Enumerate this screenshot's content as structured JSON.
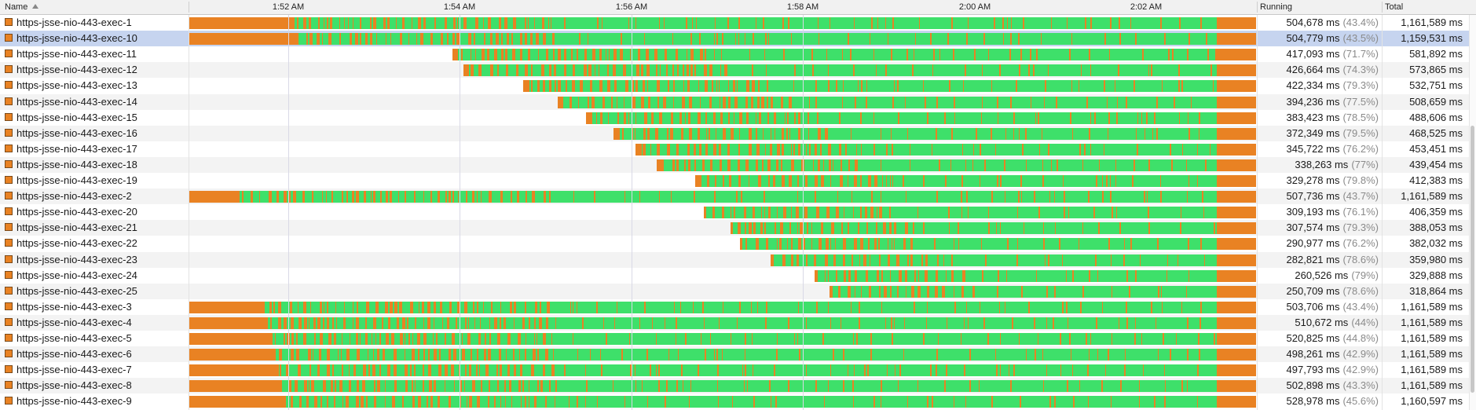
{
  "header": {
    "name_label": "Name",
    "running_label": "Running",
    "total_label": "Total",
    "ticks": [
      "1:52 AM",
      "1:54 AM",
      "1:56 AM",
      "1:58 AM",
      "2:00 AM",
      "2:02 AM"
    ]
  },
  "colors": {
    "running": "#3ee06a",
    "waiting": "#e98223",
    "selected_row": "#c6d4ef"
  },
  "threads": [
    {
      "name": "https-jsse-nio-443-exec-1",
      "running": "504,678 ms",
      "pct": "(43.4%)",
      "total": "1,161,589 ms",
      "start": 0.0
    },
    {
      "name": "https-jsse-nio-443-exec-10",
      "running": "504,779 ms",
      "pct": "(43.5%)",
      "total": "1,159,531 ms",
      "start": 0.0,
      "selected": true
    },
    {
      "name": "https-jsse-nio-443-exec-11",
      "running": "417,093 ms",
      "pct": "(71.7%)",
      "total": "581,892 ms",
      "start": 0.247
    },
    {
      "name": "https-jsse-nio-443-exec-12",
      "running": "426,664 ms",
      "pct": "(74.3%)",
      "total": "573,865 ms",
      "start": 0.257
    },
    {
      "name": "https-jsse-nio-443-exec-13",
      "running": "422,334 ms",
      "pct": "(79.3%)",
      "total": "532,751 ms",
      "start": 0.313
    },
    {
      "name": "https-jsse-nio-443-exec-14",
      "running": "394,236 ms",
      "pct": "(77.5%)",
      "total": "508,659 ms",
      "start": 0.345
    },
    {
      "name": "https-jsse-nio-443-exec-15",
      "running": "383,423 ms",
      "pct": "(78.5%)",
      "total": "488,606 ms",
      "start": 0.372
    },
    {
      "name": "https-jsse-nio-443-exec-16",
      "running": "372,349 ms",
      "pct": "(79.5%)",
      "total": "468,525 ms",
      "start": 0.398
    },
    {
      "name": "https-jsse-nio-443-exec-17",
      "running": "345,722 ms",
      "pct": "(76.2%)",
      "total": "453,451 ms",
      "start": 0.418
    },
    {
      "name": "https-jsse-nio-443-exec-18",
      "running": "338,263 ms",
      "pct": "(77%)",
      "total": "439,454 ms",
      "start": 0.438
    },
    {
      "name": "https-jsse-nio-443-exec-19",
      "running": "329,278 ms",
      "pct": "(79.8%)",
      "total": "412,383 ms",
      "start": 0.474
    },
    {
      "name": "https-jsse-nio-443-exec-2",
      "running": "507,736 ms",
      "pct": "(43.7%)",
      "total": "1,161,589 ms",
      "start": 0.0
    },
    {
      "name": "https-jsse-nio-443-exec-20",
      "running": "309,193 ms",
      "pct": "(76.1%)",
      "total": "406,359 ms",
      "start": 0.482
    },
    {
      "name": "https-jsse-nio-443-exec-21",
      "running": "307,574 ms",
      "pct": "(79.3%)",
      "total": "388,053 ms",
      "start": 0.507
    },
    {
      "name": "https-jsse-nio-443-exec-22",
      "running": "290,977 ms",
      "pct": "(76.2%)",
      "total": "382,032 ms",
      "start": 0.516
    },
    {
      "name": "https-jsse-nio-443-exec-23",
      "running": "282,821 ms",
      "pct": "(78.6%)",
      "total": "359,980 ms",
      "start": 0.545
    },
    {
      "name": "https-jsse-nio-443-exec-24",
      "running": "260,526 ms",
      "pct": "(79%)",
      "total": "329,888 ms",
      "start": 0.586
    },
    {
      "name": "https-jsse-nio-443-exec-25",
      "running": "250,709 ms",
      "pct": "(78.6%)",
      "total": "318,864 ms",
      "start": 0.6
    },
    {
      "name": "https-jsse-nio-443-exec-3",
      "running": "503,706 ms",
      "pct": "(43.4%)",
      "total": "1,161,589 ms",
      "start": 0.0
    },
    {
      "name": "https-jsse-nio-443-exec-4",
      "running": "510,672 ms",
      "pct": "(44%)",
      "total": "1,161,589 ms",
      "start": 0.0
    },
    {
      "name": "https-jsse-nio-443-exec-5",
      "running": "520,825 ms",
      "pct": "(44.8%)",
      "total": "1,161,589 ms",
      "start": 0.0
    },
    {
      "name": "https-jsse-nio-443-exec-6",
      "running": "498,261 ms",
      "pct": "(42.9%)",
      "total": "1,161,589 ms",
      "start": 0.0
    },
    {
      "name": "https-jsse-nio-443-exec-7",
      "running": "497,793 ms",
      "pct": "(42.9%)",
      "total": "1,161,589 ms",
      "start": 0.0
    },
    {
      "name": "https-jsse-nio-443-exec-8",
      "running": "502,898 ms",
      "pct": "(43.3%)",
      "total": "1,161,589 ms",
      "start": 0.0
    },
    {
      "name": "https-jsse-nio-443-exec-9",
      "running": "528,978 ms",
      "pct": "(45.6%)",
      "total": "1,160,597 ms",
      "start": 0.0
    }
  ]
}
